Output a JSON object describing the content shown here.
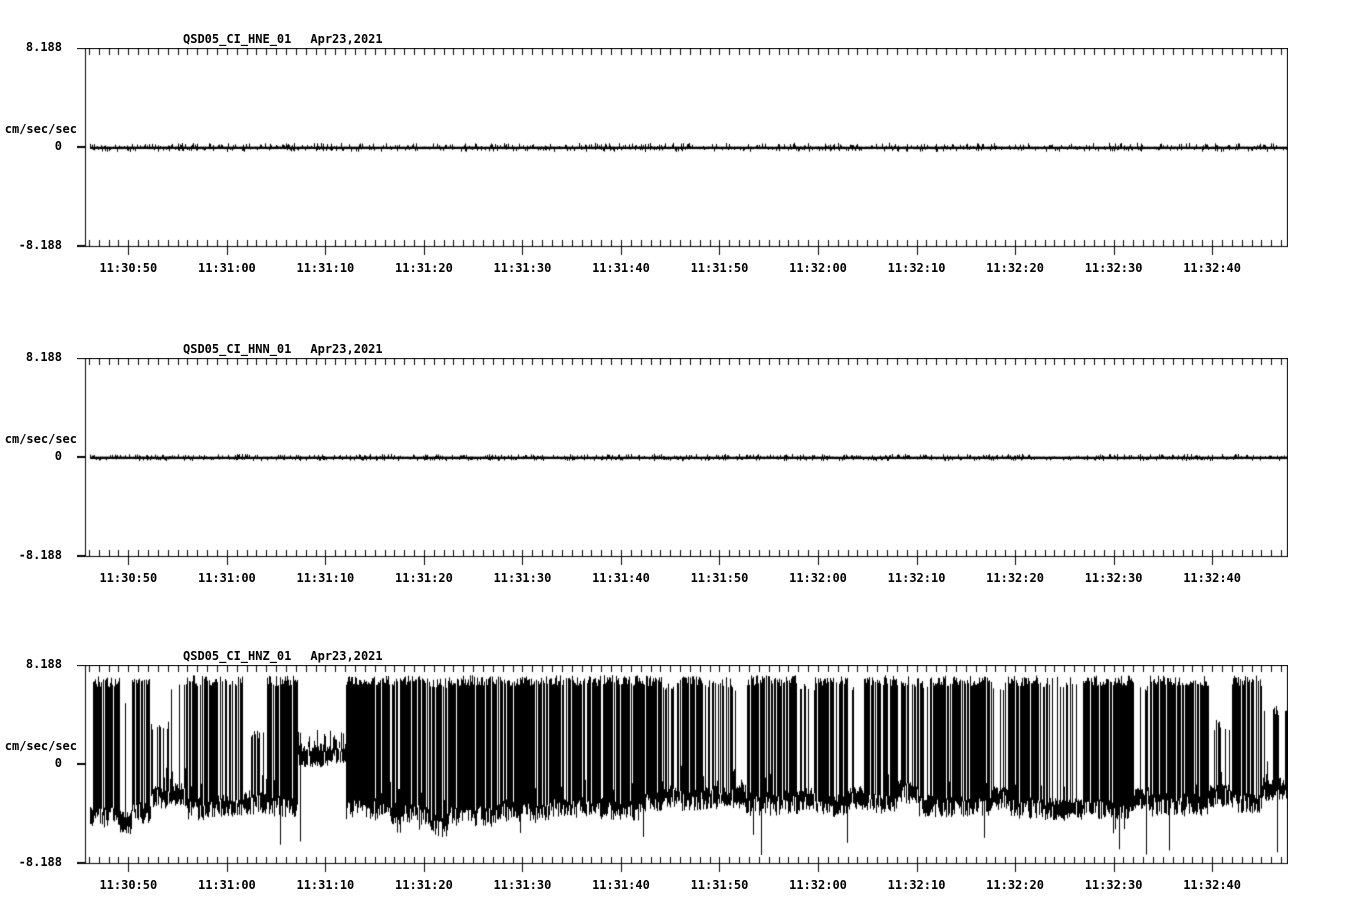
{
  "page": {
    "background": "#ffffff",
    "trace_color": "#000000"
  },
  "chart_data": [
    {
      "type": "line",
      "title": "QSD05_CI_HNE_01",
      "date": "Apr23,2021",
      "ylabel": "cm/sec/sec",
      "ylim": [
        -8.188,
        8.188
      ],
      "yticks": [
        "8.188",
        "0",
        "-8.188"
      ],
      "x_tick_labels": [
        "11:30:50",
        "11:31:00",
        "11:31:10",
        "11:31:20",
        "11:31:30",
        "11:31:40",
        "11:31:50",
        "11:32:00",
        "11:32:10",
        "11:32:20",
        "11:32:30",
        "11:32:40"
      ],
      "x_major_interval_s": 10,
      "x_minor_interval_s": 1,
      "window_seconds": 122,
      "first_major_offset_s": 4.4,
      "grid": false,
      "legend": false,
      "signal": {
        "kind": "flat-noise",
        "baseline": 0,
        "fuzz_amp": 0.18,
        "description": "near-flat trace at 0 with tiny +/-0.1 fuzz"
      }
    },
    {
      "type": "line",
      "title": "QSD05_CI_HNN_01",
      "date": "Apr23,2021",
      "ylabel": "cm/sec/sec",
      "ylim": [
        -8.188,
        8.188
      ],
      "yticks": [
        "8.188",
        "0",
        "-8.188"
      ],
      "x_tick_labels": [
        "11:30:50",
        "11:31:00",
        "11:31:10",
        "11:31:20",
        "11:31:30",
        "11:31:40",
        "11:31:50",
        "11:32:00",
        "11:32:10",
        "11:32:20",
        "11:32:30",
        "11:32:40"
      ],
      "x_major_interval_s": 10,
      "x_minor_interval_s": 1,
      "window_seconds": 122,
      "first_major_offset_s": 4.4,
      "grid": false,
      "legend": false,
      "signal": {
        "kind": "flat-noise",
        "baseline": 0,
        "fuzz_amp": 0.12,
        "description": "near-flat trace at 0, slightly thinner fuzz than HNE"
      }
    },
    {
      "type": "line",
      "title": "QSD05_CI_HNZ_01",
      "date": "Apr23,2021",
      "ylabel": "cm/sec/sec",
      "ylim": [
        -8.188,
        8.188
      ],
      "yticks": [
        "8.188",
        "0",
        "-8.188"
      ],
      "x_tick_labels": [
        "11:30:50",
        "11:31:00",
        "11:31:10",
        "11:31:20",
        "11:31:30",
        "11:31:40",
        "11:31:50",
        "11:32:00",
        "11:32:10",
        "11:32:20",
        "11:32:30",
        "11:32:40"
      ],
      "x_major_interval_s": 10,
      "x_minor_interval_s": 1,
      "window_seconds": 122,
      "first_major_offset_s": 4.4,
      "grid": false,
      "legend": false,
      "signal": {
        "kind": "clipped-burst",
        "description": "heavily clipped telegraph-like noise jumping between ~+6.9 and a wandering baseline near -3 to -4.5, with quiet gaps and sparse deep spikes to ~ -7",
        "default_hi": 6.9,
        "hi_jitter": 0.9,
        "lo_jitter": 1.6,
        "deep_spike_prob": 0.025,
        "deep_spike_level": [
          -5.3,
          -7.6
        ],
        "segment_format": [
          "t0_s",
          "t1_s",
          "density",
          "baseline",
          "hi_level"
        ],
        "segments": [
          [
            0.8,
            3.5,
            0.85,
            -4.4,
            6.8
          ],
          [
            3.5,
            4.7,
            0.1,
            -4.9,
            5.0
          ],
          [
            4.7,
            6.6,
            0.88,
            -4.1,
            6.9
          ],
          [
            6.6,
            8.6,
            0.3,
            -2.8,
            3.3
          ],
          [
            8.6,
            10.2,
            0.25,
            -2.6,
            6.5
          ],
          [
            10.2,
            11.6,
            0.6,
            -3.8,
            6.9
          ],
          [
            11.6,
            13.4,
            0.9,
            -3.9,
            6.9
          ],
          [
            13.4,
            16.0,
            0.5,
            -3.6,
            6.8
          ],
          [
            16.0,
            18.4,
            0.22,
            -3.3,
            2.5
          ],
          [
            18.4,
            21.6,
            0.78,
            -3.6,
            6.9
          ],
          [
            21.6,
            26.4,
            0.25,
            0.6,
            2.2
          ],
          [
            26.4,
            31.0,
            0.92,
            -3.8,
            6.9
          ],
          [
            31.0,
            35.0,
            0.88,
            -4.2,
            6.9
          ],
          [
            35.0,
            36.8,
            0.65,
            -5.2,
            6.7
          ],
          [
            36.8,
            42.0,
            0.9,
            -4.3,
            6.9
          ],
          [
            42.0,
            47.0,
            0.85,
            -4.0,
            6.9
          ],
          [
            47.0,
            52.3,
            0.82,
            -3.7,
            6.9
          ],
          [
            52.3,
            56.5,
            0.86,
            -3.9,
            6.9
          ],
          [
            56.5,
            58.5,
            0.85,
            -3.3,
            6.9
          ],
          [
            58.5,
            60.5,
            0.4,
            -2.7,
            6.6
          ],
          [
            60.5,
            63.0,
            0.8,
            -3.1,
            6.9
          ],
          [
            63.0,
            65.5,
            0.6,
            -2.9,
            6.8
          ],
          [
            65.5,
            67.0,
            0.25,
            -2.8,
            6.3
          ],
          [
            67.0,
            72.4,
            0.85,
            -3.4,
            6.9
          ],
          [
            72.4,
            74.0,
            0.25,
            -3.0,
            6.4
          ],
          [
            74.0,
            77.4,
            0.9,
            -3.6,
            6.9
          ],
          [
            77.4,
            79.0,
            0.22,
            -2.9,
            6.4
          ],
          [
            79.0,
            82.5,
            0.88,
            -3.3,
            6.9
          ],
          [
            82.5,
            84.5,
            0.5,
            -2.4,
            6.8
          ],
          [
            84.5,
            86.3,
            0.45,
            -3.6,
            6.7
          ],
          [
            86.3,
            92.0,
            0.85,
            -3.6,
            6.9
          ],
          [
            92.0,
            93.6,
            0.3,
            -2.9,
            6.4
          ],
          [
            93.6,
            96.8,
            0.9,
            -3.7,
            6.9
          ],
          [
            96.8,
            101.2,
            0.35,
            -3.8,
            6.8
          ],
          [
            101.2,
            106.4,
            0.88,
            -3.8,
            6.9
          ],
          [
            106.4,
            108.0,
            0.32,
            -3.0,
            6.5
          ],
          [
            108.0,
            114.0,
            0.86,
            -3.5,
            6.9
          ],
          [
            114.0,
            116.4,
            0.38,
            -2.7,
            3.2
          ],
          [
            116.4,
            119.4,
            0.8,
            -3.3,
            6.9
          ],
          [
            119.4,
            122.0,
            0.55,
            -2.2,
            4.5
          ]
        ]
      }
    }
  ]
}
